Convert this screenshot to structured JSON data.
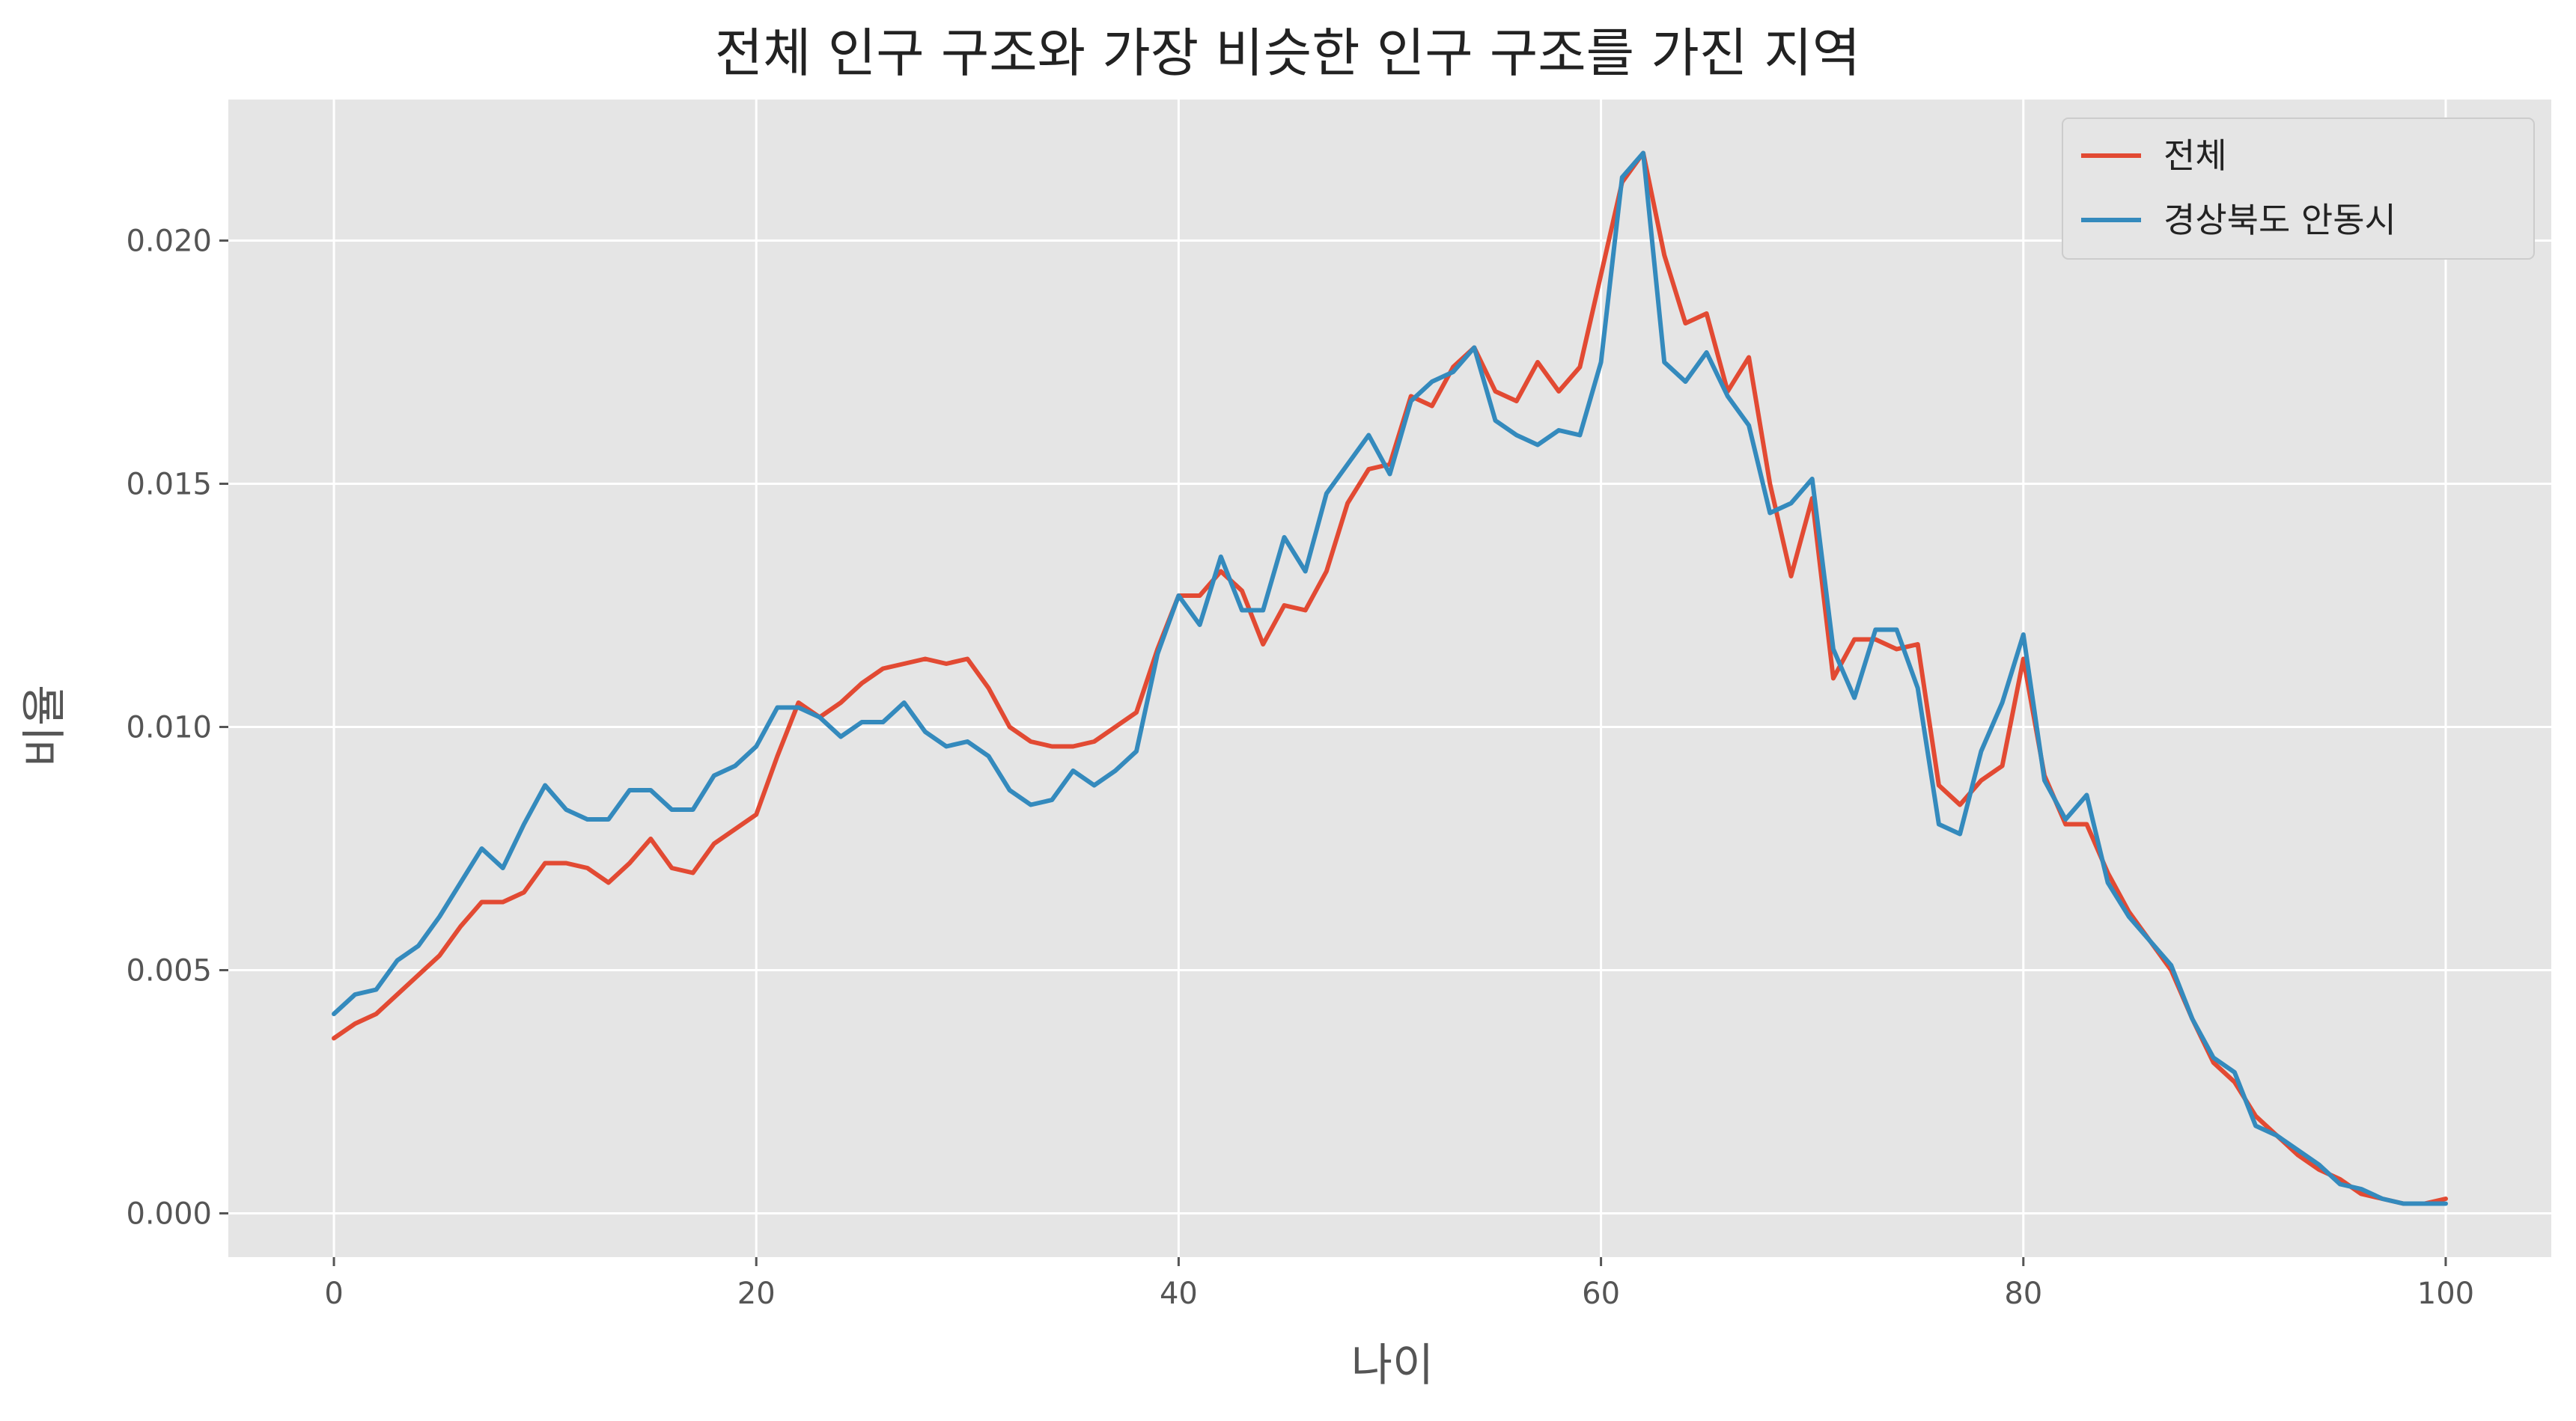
{
  "chart_data": {
    "type": "line",
    "title": "전체 인구 구조와 가장 비슷한 인구 구조를 가진 지역",
    "xlabel": "나이",
    "ylabel": "비율",
    "xlim": [
      -5,
      105
    ],
    "ylim": [
      -0.0009,
      0.0229
    ],
    "xticks": [
      0,
      20,
      40,
      60,
      80,
      100
    ],
    "yticks": [
      0.0,
      0.005,
      0.01,
      0.015,
      0.02
    ],
    "ytick_labels": [
      "0.000",
      "0.005",
      "0.010",
      "0.015",
      "0.020"
    ],
    "xtick_labels": [
      "0",
      "20",
      "40",
      "60",
      "80",
      "100"
    ],
    "grid": true,
    "legend_position": "top-right",
    "background": "#e5e5e5",
    "x": [
      0,
      1,
      2,
      3,
      4,
      5,
      6,
      7,
      8,
      9,
      10,
      11,
      12,
      13,
      14,
      15,
      16,
      17,
      18,
      19,
      20,
      21,
      22,
      23,
      24,
      25,
      26,
      27,
      28,
      29,
      30,
      31,
      32,
      33,
      34,
      35,
      36,
      37,
      38,
      39,
      40,
      41,
      42,
      43,
      44,
      45,
      46,
      47,
      48,
      49,
      50,
      51,
      52,
      53,
      54,
      55,
      56,
      57,
      58,
      59,
      60,
      61,
      62,
      63,
      64,
      65,
      66,
      67,
      68,
      69,
      70,
      71,
      72,
      73,
      74,
      75,
      76,
      77,
      78,
      79,
      80,
      81,
      82,
      83,
      84,
      85,
      86,
      87,
      88,
      89,
      90,
      91,
      92,
      93,
      94,
      95,
      96,
      97,
      98,
      99,
      100
    ],
    "series": [
      {
        "name": "전체",
        "color": "#e24a33",
        "values": [
          0.0036,
          0.0039,
          0.0041,
          0.0045,
          0.0049,
          0.0053,
          0.0059,
          0.0064,
          0.0064,
          0.0066,
          0.0072,
          0.0072,
          0.0071,
          0.0068,
          0.0072,
          0.0077,
          0.0071,
          0.007,
          0.0076,
          0.0079,
          0.0082,
          0.0094,
          0.0105,
          0.0102,
          0.0105,
          0.0109,
          0.0112,
          0.0113,
          0.0114,
          0.0113,
          0.0114,
          0.0108,
          0.01,
          0.0097,
          0.0096,
          0.0096,
          0.0097,
          0.01,
          0.0103,
          0.0116,
          0.0127,
          0.0127,
          0.0132,
          0.0128,
          0.0117,
          0.0125,
          0.0124,
          0.0132,
          0.0146,
          0.0153,
          0.0154,
          0.0168,
          0.0166,
          0.0174,
          0.0178,
          0.0169,
          0.0167,
          0.0175,
          0.0169,
          0.0174,
          0.0193,
          0.0212,
          0.0218,
          0.0197,
          0.0183,
          0.0185,
          0.0169,
          0.0176,
          0.015,
          0.0131,
          0.0147,
          0.011,
          0.0118,
          0.0118,
          0.0116,
          0.0117,
          0.0088,
          0.0084,
          0.0089,
          0.0092,
          0.0114,
          0.009,
          0.008,
          0.008,
          0.007,
          0.0062,
          0.0056,
          0.005,
          0.004,
          0.0031,
          0.0027,
          0.002,
          0.0016,
          0.0012,
          0.0009,
          0.0007,
          0.0004,
          0.0003,
          0.0002,
          0.0002,
          0.0003
        ]
      },
      {
        "name": "경상북도 안동시",
        "color": "#348abd",
        "values": [
          0.0041,
          0.0045,
          0.0046,
          0.0052,
          0.0055,
          0.0061,
          0.0068,
          0.0075,
          0.0071,
          0.008,
          0.0088,
          0.0083,
          0.0081,
          0.0081,
          0.0087,
          0.0087,
          0.0083,
          0.0083,
          0.009,
          0.0092,
          0.0096,
          0.0104,
          0.0104,
          0.0102,
          0.0098,
          0.0101,
          0.0101,
          0.0105,
          0.0099,
          0.0096,
          0.0097,
          0.0094,
          0.0087,
          0.0084,
          0.0085,
          0.0091,
          0.0088,
          0.0091,
          0.0095,
          0.0115,
          0.0127,
          0.0121,
          0.0135,
          0.0124,
          0.0124,
          0.0139,
          0.0132,
          0.0148,
          0.0154,
          0.016,
          0.0152,
          0.0167,
          0.0171,
          0.0173,
          0.0178,
          0.0163,
          0.016,
          0.0158,
          0.0161,
          0.016,
          0.0175,
          0.0213,
          0.0218,
          0.0175,
          0.0171,
          0.0177,
          0.0168,
          0.0162,
          0.0144,
          0.0146,
          0.0151,
          0.0116,
          0.0106,
          0.012,
          0.012,
          0.0108,
          0.008,
          0.0078,
          0.0095,
          0.0105,
          0.0119,
          0.0089,
          0.0081,
          0.0086,
          0.0068,
          0.0061,
          0.0056,
          0.0051,
          0.004,
          0.0032,
          0.0029,
          0.0018,
          0.0016,
          0.0013,
          0.001,
          0.0006,
          0.0005,
          0.0003,
          0.0002,
          0.0002,
          0.0002
        ]
      }
    ]
  }
}
